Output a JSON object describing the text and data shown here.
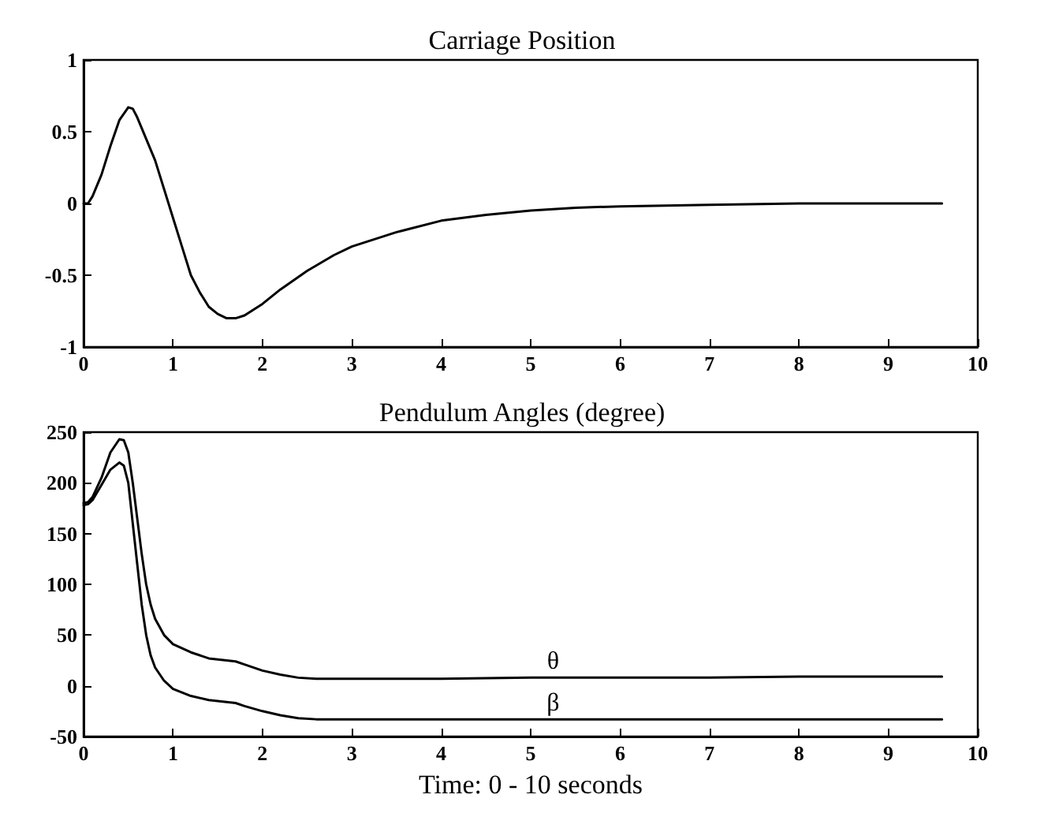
{
  "chart_data": [
    {
      "type": "line",
      "title": "Carriage Position",
      "xlim": [
        0,
        10
      ],
      "xticks": [
        0,
        1,
        2,
        3,
        4,
        5,
        6,
        7,
        8,
        9,
        10
      ],
      "ylim": [
        -1,
        1
      ],
      "yticks": [
        -1,
        -0.5,
        0,
        0.5,
        1
      ],
      "grid": false,
      "marker": "none",
      "line_style": "solid",
      "series": [
        {
          "color": "#000000",
          "x": [
            0,
            0.05,
            0.1,
            0.2,
            0.3,
            0.4,
            0.5,
            0.55,
            0.6,
            0.7,
            0.8,
            0.9,
            1.0,
            1.1,
            1.2,
            1.3,
            1.4,
            1.5,
            1.6,
            1.7,
            1.8,
            2.0,
            2.2,
            2.5,
            2.8,
            3.0,
            3.5,
            4.0,
            4.5,
            5.0,
            5.5,
            6.0,
            7.0,
            8.0,
            9.0,
            9.6
          ],
          "values": [
            0,
            0,
            0.05,
            0.2,
            0.4,
            0.58,
            0.67,
            0.66,
            0.6,
            0.45,
            0.3,
            0.1,
            -0.1,
            -0.3,
            -0.5,
            -0.62,
            -0.72,
            -0.77,
            -0.8,
            -0.8,
            -0.78,
            -0.7,
            -0.6,
            -0.47,
            -0.36,
            -0.3,
            -0.2,
            -0.12,
            -0.08,
            -0.05,
            -0.03,
            -0.02,
            -0.01,
            0,
            0,
            0
          ]
        }
      ]
    },
    {
      "type": "line",
      "title": "Pendulum Angles (degree)",
      "xlabel": "Time: 0 - 10 seconds",
      "xlim": [
        0,
        10
      ],
      "xticks": [
        0,
        1,
        2,
        3,
        4,
        5,
        6,
        7,
        8,
        9,
        10
      ],
      "ylim": [
        -50,
        250
      ],
      "yticks": [
        -50,
        0,
        50,
        100,
        150,
        200,
        250
      ],
      "grid": false,
      "marker": "none",
      "line_style": "solid",
      "series": [
        {
          "name": "θ",
          "color": "#000000",
          "x": [
            0,
            0.05,
            0.1,
            0.2,
            0.3,
            0.4,
            0.45,
            0.5,
            0.55,
            0.6,
            0.65,
            0.7,
            0.75,
            0.8,
            0.9,
            1.0,
            1.2,
            1.4,
            1.6,
            1.7,
            1.8,
            2.0,
            2.2,
            2.4,
            2.6,
            3.0,
            4.0,
            5.0,
            6.0,
            7.0,
            8.0,
            9.0,
            9.6
          ],
          "values": [
            180,
            181,
            186,
            205,
            230,
            243,
            242,
            230,
            200,
            165,
            130,
            100,
            80,
            66,
            50,
            41,
            33,
            27,
            25,
            24,
            21,
            15,
            11,
            8,
            7,
            7,
            7,
            8,
            8,
            8,
            9,
            9,
            9
          ]
        },
        {
          "name": "β",
          "color": "#000000",
          "x": [
            0,
            0.05,
            0.1,
            0.2,
            0.3,
            0.4,
            0.45,
            0.5,
            0.55,
            0.6,
            0.65,
            0.7,
            0.75,
            0.8,
            0.9,
            1.0,
            1.2,
            1.4,
            1.6,
            1.7,
            1.8,
            2.0,
            2.2,
            2.4,
            2.6,
            3.0,
            4.0,
            5.0,
            6.0,
            7.0,
            8.0,
            9.0,
            9.6
          ],
          "values": [
            178,
            179,
            183,
            198,
            213,
            220,
            217,
            200,
            160,
            120,
            80,
            50,
            30,
            18,
            5,
            -3,
            -10,
            -14,
            -16,
            -17,
            -20,
            -25,
            -29,
            -32,
            -33,
            -33,
            -33,
            -33,
            -33,
            -33,
            -33,
            -33,
            -33
          ]
        }
      ]
    }
  ]
}
